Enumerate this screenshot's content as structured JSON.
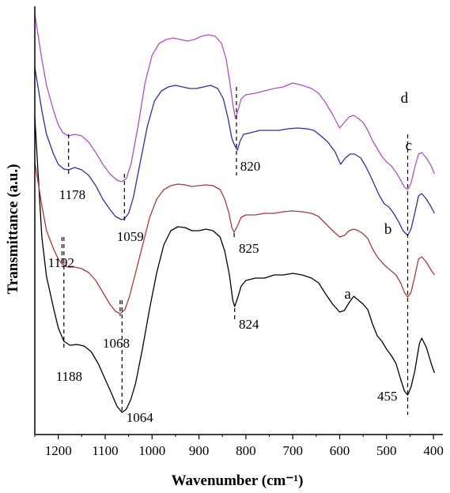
{
  "chart_data": {
    "type": "line",
    "xlabel": "Wavenumber (cm⁻¹)",
    "ylabel": "Transmittance (a.u.)",
    "xlim": [
      1250,
      380
    ],
    "x_reversed": true,
    "x_ticks": [
      1200,
      1100,
      1000,
      900,
      800,
      700,
      600,
      500,
      400
    ],
    "y_ticks_shown": false,
    "series": [
      {
        "name": "a",
        "color": "#000000",
        "points": [
          [
            1250,
            148
          ],
          [
            1235,
            300
          ],
          [
            1225,
            350
          ],
          [
            1210,
            390
          ],
          [
            1200,
            415
          ],
          [
            1188,
            432
          ],
          [
            1175,
            437
          ],
          [
            1160,
            436
          ],
          [
            1145,
            438
          ],
          [
            1130,
            445
          ],
          [
            1115,
            460
          ],
          [
            1100,
            480
          ],
          [
            1085,
            500
          ],
          [
            1075,
            514
          ],
          [
            1064,
            522
          ],
          [
            1055,
            518
          ],
          [
            1045,
            505
          ],
          [
            1035,
            485
          ],
          [
            1020,
            440
          ],
          [
            1005,
            390
          ],
          [
            990,
            345
          ],
          [
            975,
            310
          ],
          [
            960,
            292
          ],
          [
            945,
            287
          ],
          [
            930,
            288
          ],
          [
            915,
            292
          ],
          [
            900,
            292
          ],
          [
            885,
            290
          ],
          [
            870,
            292
          ],
          [
            855,
            300
          ],
          [
            845,
            318
          ],
          [
            835,
            348
          ],
          [
            828,
            380
          ],
          [
            824,
            388
          ],
          [
            818,
            378
          ],
          [
            810,
            362
          ],
          [
            800,
            355
          ],
          [
            780,
            352
          ],
          [
            760,
            352
          ],
          [
            740,
            348
          ],
          [
            720,
            348
          ],
          [
            700,
            346
          ],
          [
            680,
            348
          ],
          [
            660,
            352
          ],
          [
            645,
            358
          ],
          [
            630,
            372
          ],
          [
            615,
            385
          ],
          [
            600,
            395
          ],
          [
            590,
            393
          ],
          [
            580,
            383
          ],
          [
            570,
            375
          ],
          [
            560,
            380
          ],
          [
            550,
            385
          ],
          [
            540,
            392
          ],
          [
            530,
            410
          ],
          [
            520,
            425
          ],
          [
            510,
            432
          ],
          [
            500,
            442
          ],
          [
            490,
            450
          ],
          [
            480,
            460
          ],
          [
            470,
            480
          ],
          [
            462,
            495
          ],
          [
            455,
            500
          ],
          [
            448,
            490
          ],
          [
            440,
            470
          ],
          [
            430,
            435
          ],
          [
            425,
            428
          ],
          [
            415,
            440
          ],
          [
            405,
            460
          ],
          [
            398,
            472
          ]
        ]
      },
      {
        "name": "b",
        "color": "#a83a3a",
        "points": [
          [
            1250,
            205
          ],
          [
            1235,
            260
          ],
          [
            1225,
            292
          ],
          [
            1210,
            315
          ],
          [
            1200,
            328
          ],
          [
            1192,
            334
          ],
          [
            1180,
            338
          ],
          [
            1165,
            338
          ],
          [
            1150,
            340
          ],
          [
            1135,
            345
          ],
          [
            1120,
            355
          ],
          [
            1105,
            370
          ],
          [
            1090,
            385
          ],
          [
            1078,
            394
          ],
          [
            1068,
            397
          ],
          [
            1058,
            392
          ],
          [
            1048,
            375
          ],
          [
            1035,
            345
          ],
          [
            1020,
            310
          ],
          [
            1005,
            275
          ],
          [
            990,
            252
          ],
          [
            975,
            240
          ],
          [
            960,
            235
          ],
          [
            945,
            233
          ],
          [
            930,
            234
          ],
          [
            915,
            236
          ],
          [
            900,
            235
          ],
          [
            885,
            234
          ],
          [
            870,
            235
          ],
          [
            855,
            240
          ],
          [
            845,
            252
          ],
          [
            836,
            270
          ],
          [
            830,
            288
          ],
          [
            825,
            294
          ],
          [
            818,
            286
          ],
          [
            810,
            275
          ],
          [
            800,
            272
          ],
          [
            780,
            272
          ],
          [
            760,
            270
          ],
          [
            740,
            270
          ],
          [
            720,
            268
          ],
          [
            700,
            267
          ],
          [
            680,
            268
          ],
          [
            660,
            270
          ],
          [
            645,
            274
          ],
          [
            630,
            283
          ],
          [
            615,
            292
          ],
          [
            600,
            300
          ],
          [
            590,
            298
          ],
          [
            580,
            292
          ],
          [
            570,
            290
          ],
          [
            560,
            292
          ],
          [
            550,
            296
          ],
          [
            540,
            302
          ],
          [
            530,
            315
          ],
          [
            520,
            325
          ],
          [
            510,
            332
          ],
          [
            500,
            338
          ],
          [
            490,
            343
          ],
          [
            480,
            348
          ],
          [
            470,
            358
          ],
          [
            462,
            370
          ],
          [
            455,
            376
          ],
          [
            448,
            370
          ],
          [
            440,
            350
          ],
          [
            432,
            328
          ],
          [
            425,
            325
          ],
          [
            415,
            332
          ],
          [
            405,
            342
          ],
          [
            398,
            348
          ]
        ]
      },
      {
        "name": "c",
        "color": "#2e2e9a",
        "points": [
          [
            1250,
            85
          ],
          [
            1235,
            140
          ],
          [
            1225,
            170
          ],
          [
            1210,
            195
          ],
          [
            1200,
            208
          ],
          [
            1188,
            214
          ],
          [
            1178,
            215
          ],
          [
            1165,
            212
          ],
          [
            1150,
            215
          ],
          [
            1135,
            222
          ],
          [
            1120,
            235
          ],
          [
            1105,
            252
          ],
          [
            1090,
            265
          ],
          [
            1078,
            274
          ],
          [
            1065,
            278
          ],
          [
            1059,
            277
          ],
          [
            1050,
            270
          ],
          [
            1040,
            250
          ],
          [
            1025,
            205
          ],
          [
            1010,
            160
          ],
          [
            995,
            128
          ],
          [
            980,
            115
          ],
          [
            965,
            110
          ],
          [
            950,
            108
          ],
          [
            935,
            110
          ],
          [
            920,
            112
          ],
          [
            905,
            112
          ],
          [
            890,
            110
          ],
          [
            875,
            108
          ],
          [
            860,
            112
          ],
          [
            848,
            125
          ],
          [
            838,
            150
          ],
          [
            830,
            175
          ],
          [
            824,
            184
          ],
          [
            818,
            190
          ],
          [
            812,
            178
          ],
          [
            805,
            170
          ],
          [
            790,
            168
          ],
          [
            770,
            165
          ],
          [
            750,
            165
          ],
          [
            730,
            165
          ],
          [
            710,
            163
          ],
          [
            690,
            162
          ],
          [
            670,
            163
          ],
          [
            655,
            165
          ],
          [
            640,
            172
          ],
          [
            625,
            180
          ],
          [
            610,
            192
          ],
          [
            598,
            208
          ],
          [
            588,
            200
          ],
          [
            578,
            195
          ],
          [
            568,
            195
          ],
          [
            555,
            200
          ],
          [
            545,
            210
          ],
          [
            535,
            222
          ],
          [
            525,
            235
          ],
          [
            515,
            248
          ],
          [
            505,
            258
          ],
          [
            495,
            262
          ],
          [
            485,
            270
          ],
          [
            475,
            280
          ],
          [
            465,
            292
          ],
          [
            455,
            298
          ],
          [
            448,
            290
          ],
          [
            440,
            270
          ],
          [
            432,
            248
          ],
          [
            425,
            245
          ],
          [
            415,
            252
          ],
          [
            405,
            262
          ],
          [
            398,
            270
          ]
        ]
      },
      {
        "name": "d",
        "color": "#b04fc4",
        "points": [
          [
            1250,
            18
          ],
          [
            1235,
            75
          ],
          [
            1225,
            108
          ],
          [
            1210,
            140
          ],
          [
            1200,
            158
          ],
          [
            1190,
            168
          ],
          [
            1178,
            172
          ],
          [
            1165,
            170
          ],
          [
            1150,
            172
          ],
          [
            1135,
            180
          ],
          [
            1120,
            193
          ],
          [
            1105,
            208
          ],
          [
            1090,
            220
          ],
          [
            1075,
            228
          ],
          [
            1065,
            230
          ],
          [
            1055,
            226
          ],
          [
            1045,
            208
          ],
          [
            1030,
            160
          ],
          [
            1015,
            105
          ],
          [
            1000,
            70
          ],
          [
            985,
            55
          ],
          [
            970,
            50
          ],
          [
            955,
            48
          ],
          [
            940,
            50
          ],
          [
            925,
            52
          ],
          [
            910,
            50
          ],
          [
            895,
            46
          ],
          [
            880,
            44
          ],
          [
            865,
            46
          ],
          [
            852,
            55
          ],
          [
            842,
            75
          ],
          [
            834,
            105
          ],
          [
            827,
            135
          ],
          [
            822,
            150
          ],
          [
            816,
            138
          ],
          [
            810,
            125
          ],
          [
            800,
            120
          ],
          [
            780,
            118
          ],
          [
            760,
            115
          ],
          [
            740,
            112
          ],
          [
            720,
            110
          ],
          [
            700,
            105
          ],
          [
            680,
            108
          ],
          [
            660,
            112
          ],
          [
            645,
            118
          ],
          [
            630,
            130
          ],
          [
            615,
            145
          ],
          [
            600,
            162
          ],
          [
            590,
            155
          ],
          [
            580,
            148
          ],
          [
            570,
            146
          ],
          [
            560,
            150
          ],
          [
            550,
            155
          ],
          [
            540,
            165
          ],
          [
            530,
            178
          ],
          [
            520,
            188
          ],
          [
            510,
            198
          ],
          [
            500,
            205
          ],
          [
            490,
            210
          ],
          [
            480,
            218
          ],
          [
            470,
            228
          ],
          [
            462,
            237
          ],
          [
            455,
            240
          ],
          [
            448,
            232
          ],
          [
            440,
            212
          ],
          [
            432,
            195
          ],
          [
            425,
            193
          ],
          [
            415,
            200
          ],
          [
            405,
            210
          ],
          [
            398,
            220
          ]
        ]
      }
    ],
    "annotations": [
      {
        "text": "1188",
        "x": 1188
      },
      {
        "text": "1064",
        "x": 1064
      },
      {
        "text": "824",
        "x": 824
      },
      {
        "text": "455",
        "x": 455
      },
      {
        "text": "1192",
        "x": 1192
      },
      {
        "text": "1068",
        "x": 1068
      },
      {
        "text": "825",
        "x": 825
      },
      {
        "text": "1178",
        "x": 1178
      },
      {
        "text": "1059",
        "x": 1059
      },
      {
        "text": "820",
        "x": 820
      }
    ]
  }
}
